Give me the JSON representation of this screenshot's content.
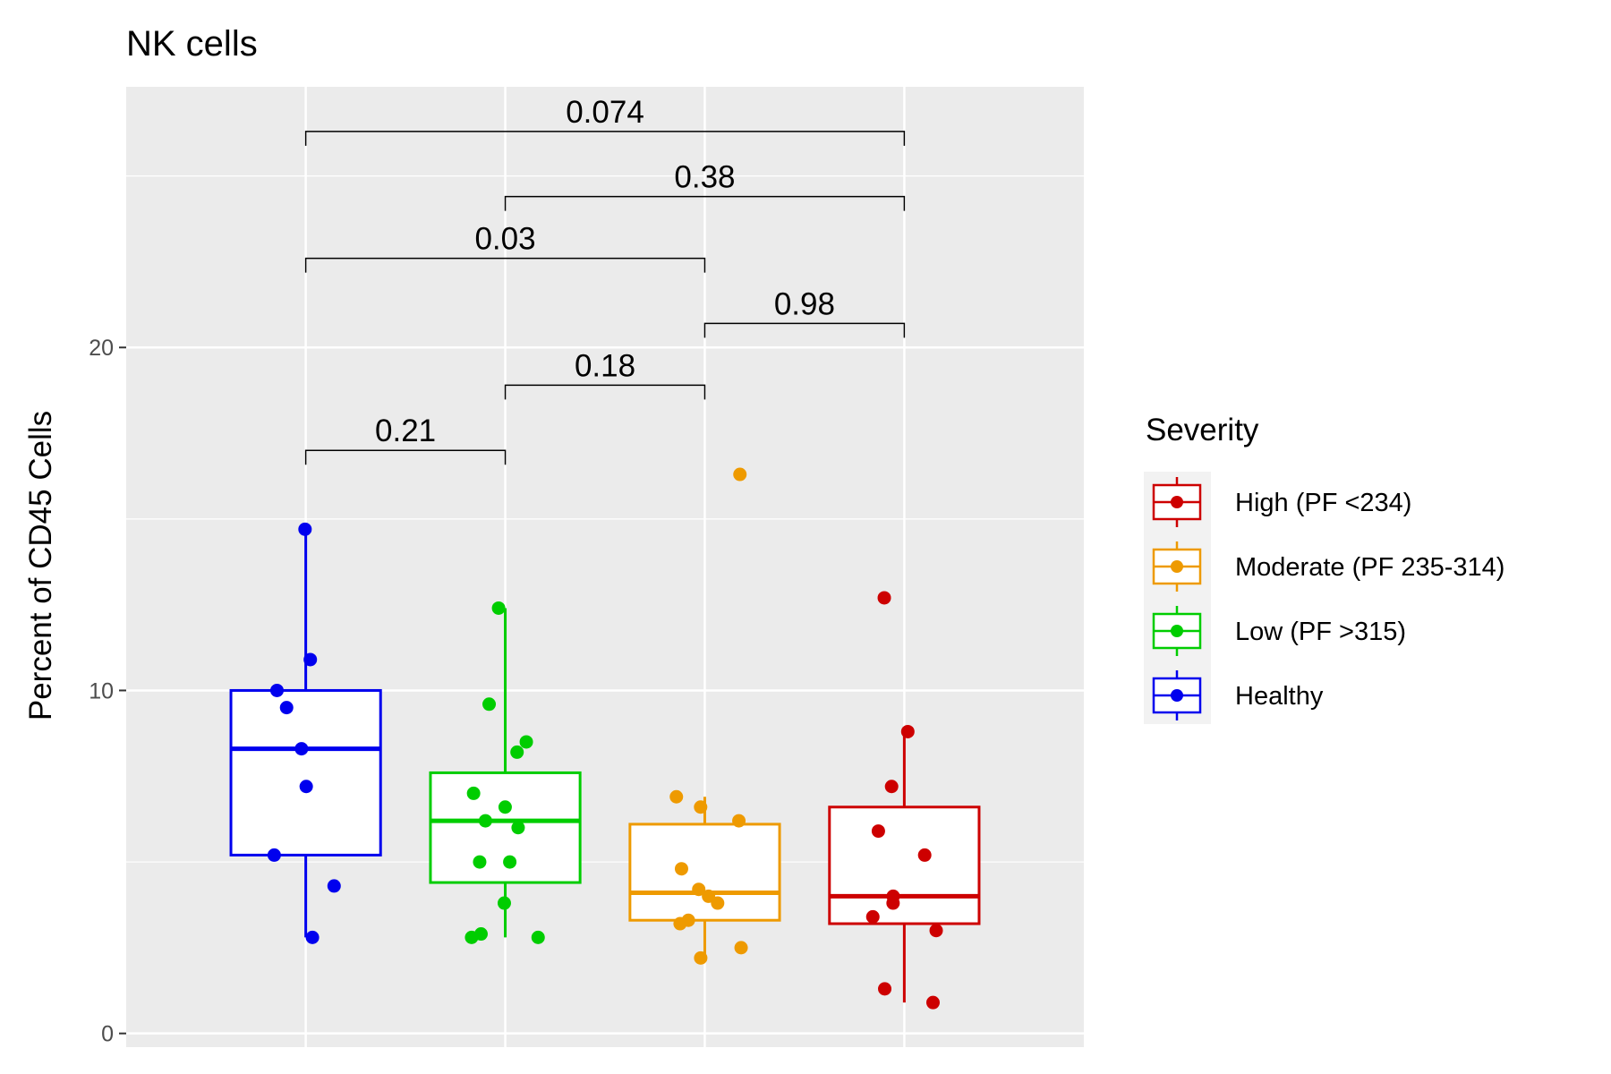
{
  "chart_data": {
    "type": "box",
    "title": "NK cells",
    "xlabel": "",
    "ylabel": "Percent of CD45 Cells",
    "ylim": [
      -0.4,
      27.6
    ],
    "yticks": [
      0,
      10,
      20
    ],
    "grid": true,
    "legend_position": "right",
    "legend_title": "Severity",
    "legend": [
      {
        "label": "High (PF <234)",
        "group": "high"
      },
      {
        "label": "Moderate (PF 235-314)",
        "group": "moderate"
      },
      {
        "label": "Low (PF >315)",
        "group": "low"
      },
      {
        "label": "Healthy",
        "group": "healthy"
      }
    ],
    "groups": [
      {
        "key": "healthy",
        "color": "#0000EE",
        "q1": 5.2,
        "median": 8.3,
        "q3": 10.0,
        "whisker_low": 2.8,
        "whisker_high": 14.7,
        "points": [
          14.7,
          10.9,
          10.0,
          9.5,
          8.3,
          7.2,
          5.2,
          4.3,
          2.8
        ]
      },
      {
        "key": "low",
        "color": "#00CD00",
        "q1": 4.4,
        "median": 6.2,
        "q3": 7.6,
        "whisker_low": 2.8,
        "whisker_high": 12.4,
        "points": [
          12.4,
          9.6,
          8.5,
          8.2,
          7.0,
          6.6,
          6.2,
          6.0,
          5.0,
          5.0,
          3.8,
          2.9,
          2.8,
          2.8
        ]
      },
      {
        "key": "moderate",
        "color": "#EE9A00",
        "q1": 3.3,
        "median": 4.1,
        "q3": 6.1,
        "whisker_low": 2.2,
        "whisker_high": 6.9,
        "points": [
          16.3,
          6.9,
          6.6,
          6.2,
          4.8,
          4.2,
          4.0,
          3.8,
          3.3,
          3.2,
          2.5,
          2.2
        ]
      },
      {
        "key": "high",
        "color": "#CD0000",
        "q1": 3.2,
        "median": 4.0,
        "q3": 6.6,
        "whisker_low": 0.9,
        "whisker_high": 8.8,
        "points": [
          12.7,
          8.8,
          7.2,
          5.9,
          5.2,
          4.0,
          3.8,
          3.4,
          3.0,
          1.3,
          0.9
        ]
      }
    ],
    "comparisons": [
      {
        "from": 0,
        "to": 1,
        "y": 17.0,
        "label": "0.21"
      },
      {
        "from": 1,
        "to": 2,
        "y": 18.9,
        "label": "0.18"
      },
      {
        "from": 2,
        "to": 3,
        "y": 20.7,
        "label": "0.98"
      },
      {
        "from": 0,
        "to": 2,
        "y": 22.6,
        "label": "0.03"
      },
      {
        "from": 1,
        "to": 3,
        "y": 24.4,
        "label": "0.38"
      },
      {
        "from": 0,
        "to": 3,
        "y": 26.3,
        "label": "0.074"
      }
    ]
  }
}
